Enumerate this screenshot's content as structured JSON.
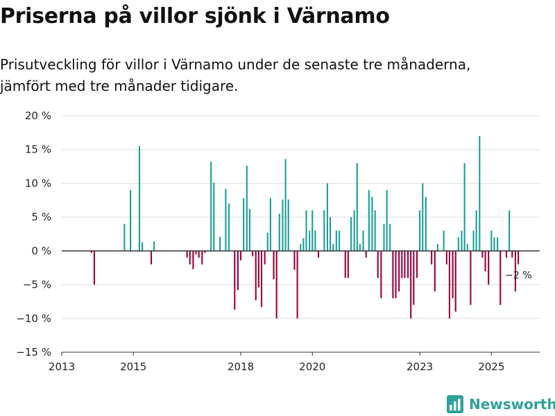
{
  "title": "Priserna på villor sjönk i Värnamo",
  "subtitle_line1": "Prisutveckling för villor i Värnamo under de senaste tre månaderna,",
  "subtitle_line2": "jämfört med tre månader tidigare.",
  "brand": {
    "name": "Newsworthy",
    "icon": "bar-chart-logo-icon"
  },
  "colors": {
    "positive": "#1a9e9a",
    "negative": "#99003d",
    "grid": "#dddddd",
    "axis": "#333333"
  },
  "chart_data": {
    "type": "bar",
    "title": "Priserna på villor sjönk i Värnamo",
    "ylabel": "",
    "xlabel": "",
    "ylim": [
      -15,
      20
    ],
    "yticks": [
      {
        "value": 20,
        "label": "20 %"
      },
      {
        "value": 15,
        "label": "15 %"
      },
      {
        "value": 10,
        "label": "10 %"
      },
      {
        "value": 5,
        "label": "5 %"
      },
      {
        "value": 0,
        "label": "0 %"
      },
      {
        "value": -5,
        "label": "−5 %"
      },
      {
        "value": -10,
        "label": "−10 %"
      },
      {
        "value": -15,
        "label": "−15 %"
      }
    ],
    "xticks": [
      {
        "value": 2013,
        "label": "2013"
      },
      {
        "value": 2015,
        "label": "2015"
      },
      {
        "value": 2018,
        "label": "2018"
      },
      {
        "value": 2020,
        "label": "2020"
      },
      {
        "value": 2023,
        "label": "2023"
      },
      {
        "value": 2025,
        "label": "2025"
      }
    ],
    "xlim": [
      2013,
      2026.35
    ],
    "bar_width_years": 0.05,
    "annotation": {
      "label": "−2 %",
      "x": 2025.64,
      "y": -2
    },
    "series": [
      {
        "name": "Prisutveckling",
        "points": [
          {
            "x": 2013.83,
            "y": -0.3
          },
          {
            "x": 2013.91,
            "y": -5.0
          },
          {
            "x": 2014.75,
            "y": 4.0
          },
          {
            "x": 2014.92,
            "y": 9.0
          },
          {
            "x": 2015.17,
            "y": 15.5
          },
          {
            "x": 2015.25,
            "y": 1.3
          },
          {
            "x": 2015.5,
            "y": -2.0
          },
          {
            "x": 2015.58,
            "y": 1.4
          },
          {
            "x": 2016.5,
            "y": -1.0
          },
          {
            "x": 2016.58,
            "y": -2.0
          },
          {
            "x": 2016.67,
            "y": -2.7
          },
          {
            "x": 2016.75,
            "y": -0.5
          },
          {
            "x": 2016.83,
            "y": -1.0
          },
          {
            "x": 2016.92,
            "y": -2.0
          },
          {
            "x": 2017.0,
            "y": -0.3
          },
          {
            "x": 2017.17,
            "y": 13.2
          },
          {
            "x": 2017.25,
            "y": 10.1
          },
          {
            "x": 2017.42,
            "y": 2.1
          },
          {
            "x": 2017.58,
            "y": 9.2
          },
          {
            "x": 2017.67,
            "y": 7.0
          },
          {
            "x": 2017.83,
            "y": -8.7
          },
          {
            "x": 2017.92,
            "y": -5.8
          },
          {
            "x": 2018.0,
            "y": -1.4
          },
          {
            "x": 2018.08,
            "y": 7.8
          },
          {
            "x": 2018.17,
            "y": 12.6
          },
          {
            "x": 2018.25,
            "y": 6.2
          },
          {
            "x": 2018.33,
            "y": -0.8
          },
          {
            "x": 2018.42,
            "y": -7.3
          },
          {
            "x": 2018.5,
            "y": -5.4
          },
          {
            "x": 2018.58,
            "y": -8.3
          },
          {
            "x": 2018.67,
            "y": -2.0
          },
          {
            "x": 2018.75,
            "y": 2.7
          },
          {
            "x": 2018.83,
            "y": 7.8
          },
          {
            "x": 2018.92,
            "y": -4.2
          },
          {
            "x": 2019.0,
            "y": -10.0
          },
          {
            "x": 2019.08,
            "y": 5.5
          },
          {
            "x": 2019.17,
            "y": 7.6
          },
          {
            "x": 2019.25,
            "y": 13.6
          },
          {
            "x": 2019.33,
            "y": 7.6
          },
          {
            "x": 2019.5,
            "y": -2.8
          },
          {
            "x": 2019.58,
            "y": -10.0
          },
          {
            "x": 2019.67,
            "y": 1.0
          },
          {
            "x": 2019.75,
            "y": 1.9
          },
          {
            "x": 2019.83,
            "y": 6.0
          },
          {
            "x": 2019.92,
            "y": 3.0
          },
          {
            "x": 2020.0,
            "y": 6.0
          },
          {
            "x": 2020.08,
            "y": 3.0
          },
          {
            "x": 2020.17,
            "y": -1.0
          },
          {
            "x": 2020.33,
            "y": 6.0
          },
          {
            "x": 2020.42,
            "y": 10.0
          },
          {
            "x": 2020.5,
            "y": 5.0
          },
          {
            "x": 2020.58,
            "y": 1.0
          },
          {
            "x": 2020.67,
            "y": 3.0
          },
          {
            "x": 2020.75,
            "y": 3.0
          },
          {
            "x": 2020.92,
            "y": -4.0
          },
          {
            "x": 2021.0,
            "y": -4.0
          },
          {
            "x": 2021.08,
            "y": 5.0
          },
          {
            "x": 2021.17,
            "y": 6.0
          },
          {
            "x": 2021.25,
            "y": 13.0
          },
          {
            "x": 2021.33,
            "y": 1.0
          },
          {
            "x": 2021.42,
            "y": 3.0
          },
          {
            "x": 2021.5,
            "y": -1.0
          },
          {
            "x": 2021.58,
            "y": 9.0
          },
          {
            "x": 2021.67,
            "y": 8.0
          },
          {
            "x": 2021.75,
            "y": 6.0
          },
          {
            "x": 2021.83,
            "y": -4.0
          },
          {
            "x": 2021.92,
            "y": -7.0
          },
          {
            "x": 2022.0,
            "y": 4.0
          },
          {
            "x": 2022.08,
            "y": 9.0
          },
          {
            "x": 2022.17,
            "y": 4.0
          },
          {
            "x": 2022.25,
            "y": -7.0
          },
          {
            "x": 2022.33,
            "y": -7.0
          },
          {
            "x": 2022.42,
            "y": -6.0
          },
          {
            "x": 2022.5,
            "y": -4.0
          },
          {
            "x": 2022.58,
            "y": -4.0
          },
          {
            "x": 2022.67,
            "y": -4.0
          },
          {
            "x": 2022.75,
            "y": -10.0
          },
          {
            "x": 2022.83,
            "y": -8.0
          },
          {
            "x": 2022.92,
            "y": -4.0
          },
          {
            "x": 2023.0,
            "y": 6.0
          },
          {
            "x": 2023.08,
            "y": 10.0
          },
          {
            "x": 2023.17,
            "y": 8.0
          },
          {
            "x": 2023.33,
            "y": -2.0
          },
          {
            "x": 2023.42,
            "y": -6.0
          },
          {
            "x": 2023.5,
            "y": 1.0
          },
          {
            "x": 2023.67,
            "y": 3.0
          },
          {
            "x": 2023.75,
            "y": -2.0
          },
          {
            "x": 2023.83,
            "y": -10.0
          },
          {
            "x": 2023.92,
            "y": -7.0
          },
          {
            "x": 2024.0,
            "y": -9.0
          },
          {
            "x": 2024.08,
            "y": 2.0
          },
          {
            "x": 2024.17,
            "y": 3.0
          },
          {
            "x": 2024.25,
            "y": 13.0
          },
          {
            "x": 2024.33,
            "y": 1.0
          },
          {
            "x": 2024.42,
            "y": -8.0
          },
          {
            "x": 2024.5,
            "y": 3.0
          },
          {
            "x": 2024.58,
            "y": 6.0
          },
          {
            "x": 2024.67,
            "y": 17.0
          },
          {
            "x": 2024.75,
            "y": -1.0
          },
          {
            "x": 2024.83,
            "y": -3.0
          },
          {
            "x": 2024.92,
            "y": -5.0
          },
          {
            "x": 2025.0,
            "y": 3.0
          },
          {
            "x": 2025.08,
            "y": 2.0
          },
          {
            "x": 2025.17,
            "y": 2.0
          },
          {
            "x": 2025.25,
            "y": -8.0
          },
          {
            "x": 2025.42,
            "y": -1.0
          },
          {
            "x": 2025.5,
            "y": 6.0
          },
          {
            "x": 2025.58,
            "y": -1.0
          },
          {
            "x": 2025.67,
            "y": -6.0
          },
          {
            "x": 2025.75,
            "y": -2.0
          }
        ]
      }
    ]
  }
}
